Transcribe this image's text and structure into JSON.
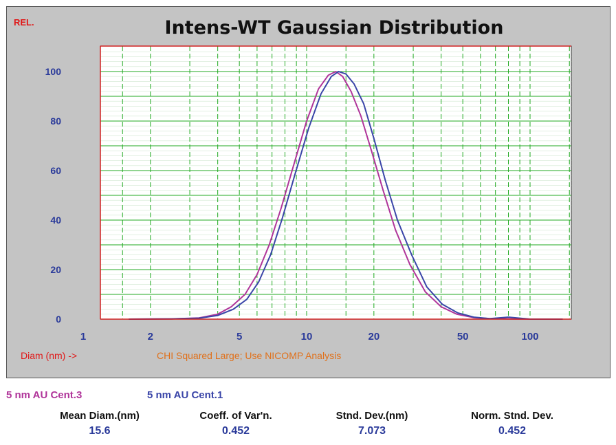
{
  "chart_data": {
    "type": "line",
    "title": "Intens-WT Gaussian Distribution",
    "ylabel": "REL.",
    "xlabel": "Diam (nm) ->",
    "annotation": "CHI Squared Large; Use NICOMP Analysis",
    "xscale": "log",
    "xlim": [
      1,
      150
    ],
    "ylim": [
      0,
      110
    ],
    "x_ticks": [
      1,
      2,
      5,
      10,
      20,
      50,
      100
    ],
    "y_ticks": [
      0,
      20,
      40,
      60,
      80,
      100
    ],
    "grid": true,
    "series": [
      {
        "name": "5 nm AU Cent.3",
        "color": "#b0359a",
        "x": [
          1.6,
          2.5,
          3.3,
          4.0,
          4.6,
          5.3,
          6.0,
          6.8,
          7.7,
          8.8,
          10.0,
          11.3,
          12.5,
          13.5,
          14.5,
          15.8,
          17.5,
          19.5,
          22.0,
          25.0,
          29.0,
          34.0,
          40.0,
          47.0,
          56.0,
          66.0,
          80.0,
          100.0,
          140.0
        ],
        "values": [
          0,
          0.1,
          0.5,
          2,
          5,
          10,
          18,
          30,
          45,
          63,
          80,
          93,
          98.5,
          100,
          98,
          92,
          82,
          68,
          52,
          36,
          22,
          11,
          5,
          2,
          0.6,
          0.2,
          0.1,
          0,
          0
        ]
      },
      {
        "name": "5 nm AU Cent.1",
        "color": "#3a45a8",
        "x": [
          1.6,
          2.5,
          3.3,
          4.0,
          4.7,
          5.4,
          6.1,
          6.9,
          7.8,
          8.9,
          10.2,
          11.6,
          12.9,
          13.9,
          15.0,
          16.3,
          18.0,
          20.0,
          22.5,
          25.5,
          29.5,
          34.5,
          40.5,
          47.5,
          56.0,
          66.0,
          80.0,
          100.0,
          140.0
        ],
        "values": [
          0,
          0.1,
          0.4,
          1.5,
          4,
          8,
          15,
          26,
          41,
          59,
          77,
          91,
          98,
          100,
          99,
          95,
          87,
          73,
          56,
          40,
          26,
          13,
          6,
          2.5,
          0.8,
          0.2,
          0.8,
          0,
          0
        ]
      }
    ]
  },
  "stats": [
    {
      "label": "Mean Diam.(nm)",
      "value": "15.6"
    },
    {
      "label": "Coeff. of Var'n.",
      "value": "0.452"
    },
    {
      "label": "Stnd. Dev.(nm)",
      "value": "7.073"
    },
    {
      "label": "Norm. Stnd. Dev.",
      "value": "0.452"
    }
  ]
}
